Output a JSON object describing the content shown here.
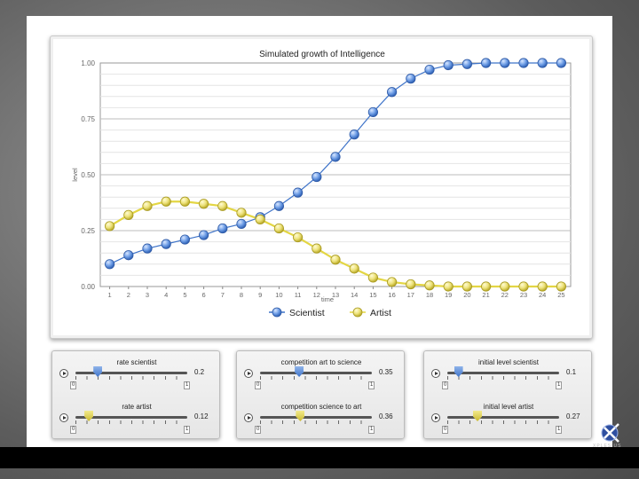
{
  "chart_data": {
    "type": "line",
    "title": "Simulated growth of Intelligence",
    "xlabel": "time",
    "ylabel": "level",
    "x": [
      1,
      2,
      3,
      4,
      5,
      6,
      7,
      8,
      9,
      10,
      11,
      12,
      13,
      14,
      15,
      16,
      17,
      18,
      19,
      20,
      21,
      22,
      23,
      24,
      25
    ],
    "xlim": [
      0.5,
      25.5
    ],
    "ylim": [
      0,
      1
    ],
    "yticks": [
      "0.00",
      "0.25",
      "0.50",
      "0.75",
      "1.00"
    ],
    "grid": true,
    "legend_position": "bottom",
    "series": [
      {
        "name": "Scientist",
        "color": "#3f74c9",
        "values": [
          0.1,
          0.14,
          0.17,
          0.19,
          0.21,
          0.23,
          0.26,
          0.28,
          0.31,
          0.36,
          0.42,
          0.49,
          0.58,
          0.68,
          0.78,
          0.87,
          0.93,
          0.97,
          0.99,
          0.995,
          1.0,
          1.0,
          1.0,
          1.0,
          1.0
        ]
      },
      {
        "name": "Artist",
        "color": "#d8cb3a",
        "values": [
          0.27,
          0.32,
          0.36,
          0.38,
          0.38,
          0.37,
          0.36,
          0.33,
          0.3,
          0.26,
          0.22,
          0.17,
          0.12,
          0.08,
          0.04,
          0.02,
          0.01,
          0.005,
          0.0,
          0.0,
          0.0,
          0.0,
          0.0,
          0.0,
          0.0
        ]
      }
    ]
  },
  "controls": [
    {
      "title": "rate scientist",
      "value": "0.2",
      "fraction": 0.2,
      "color": "blue",
      "min": "0",
      "max": "1"
    },
    {
      "title": "rate artist",
      "value": "0.12",
      "fraction": 0.12,
      "color": "yellow",
      "min": "0",
      "max": "1"
    },
    {
      "title": "competition art to science",
      "value": "0.35",
      "fraction": 0.35,
      "color": "blue",
      "min": "0",
      "max": "1"
    },
    {
      "title": "competition science to art",
      "value": "0.36",
      "fraction": 0.36,
      "color": "yellow",
      "min": "0",
      "max": "1"
    },
    {
      "title": "initial level scientist",
      "value": "0.1",
      "fraction": 0.1,
      "color": "blue",
      "min": "0",
      "max": "1"
    },
    {
      "title": "initial level artist",
      "value": "0.27",
      "fraction": 0.27,
      "color": "yellow",
      "min": "0",
      "max": "1"
    }
  ],
  "logo": {
    "text": "XPLESIUS"
  }
}
